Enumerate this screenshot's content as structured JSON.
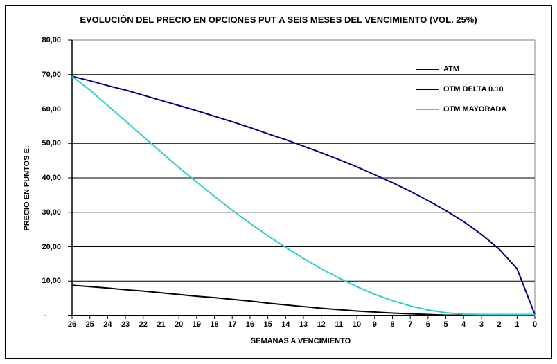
{
  "chart_data": {
    "type": "line",
    "title": "EVOLUCIÓN DEL PRECIO EN OPCIONES PUT A SEIS MESES DEL VENCIMIENTO (VOL. 25%)",
    "xlabel": "SEMANAS A VENCIMIENTO",
    "ylabel": "PRECIO EN PUNTOS E:",
    "x_descending": true,
    "x": [
      26,
      25,
      24,
      23,
      22,
      21,
      20,
      19,
      18,
      17,
      16,
      15,
      14,
      13,
      12,
      11,
      10,
      9,
      8,
      7,
      6,
      5,
      4,
      3,
      2,
      1,
      0
    ],
    "x_tick_labels": [
      "26",
      "25",
      "24",
      "23",
      "22",
      "21",
      "20",
      "19",
      "18",
      "17",
      "16",
      "15",
      "14",
      "13",
      "12",
      "11",
      "10",
      "9",
      "8",
      "7",
      "6",
      "5",
      "4",
      "3",
      "2",
      "1",
      "0"
    ],
    "y_ticks": [
      0,
      10,
      20,
      30,
      40,
      50,
      60,
      70,
      80
    ],
    "y_tick_labels": [
      "-",
      "10,00",
      "20,00",
      "30,00",
      "40,00",
      "50,00",
      "60,00",
      "70,00",
      "80,00"
    ],
    "ylim": [
      0,
      80
    ],
    "grid": "horizontal-black-lines",
    "plot_border_color": "#808080",
    "axis_color": "#000000",
    "legend_position": "inside-right",
    "series": [
      {
        "name": "ATM",
        "color": "#000080",
        "values": [
          69.5,
          68.2,
          66.8,
          65.5,
          64.0,
          62.5,
          61.0,
          59.5,
          57.9,
          56.3,
          54.6,
          52.8,
          51.1,
          49.2,
          47.3,
          45.3,
          43.2,
          40.9,
          38.6,
          36.1,
          33.4,
          30.5,
          27.3,
          23.6,
          19.3,
          13.6,
          0.3
        ]
      },
      {
        "name": "OTM DELTA 0.10",
        "color": "#000000",
        "values": [
          8.8,
          8.4,
          8.0,
          7.5,
          7.1,
          6.6,
          6.1,
          5.6,
          5.2,
          4.7,
          4.2,
          3.6,
          3.1,
          2.6,
          2.1,
          1.7,
          1.3,
          1.0,
          0.7,
          0.5,
          0.3,
          0.1,
          0.1,
          0.0,
          0.0,
          0.0,
          0.0
        ]
      },
      {
        "name": "OTM MAYORADA",
        "color": "#33CCCC",
        "values": [
          69.5,
          65.5,
          61.0,
          56.5,
          52.0,
          47.5,
          43.0,
          38.8,
          34.6,
          30.6,
          26.8,
          23.2,
          19.8,
          16.6,
          13.6,
          10.9,
          8.4,
          6.2,
          4.3,
          2.8,
          1.6,
          0.8,
          0.4,
          0.3,
          0.3,
          0.3,
          0.3
        ]
      }
    ]
  }
}
